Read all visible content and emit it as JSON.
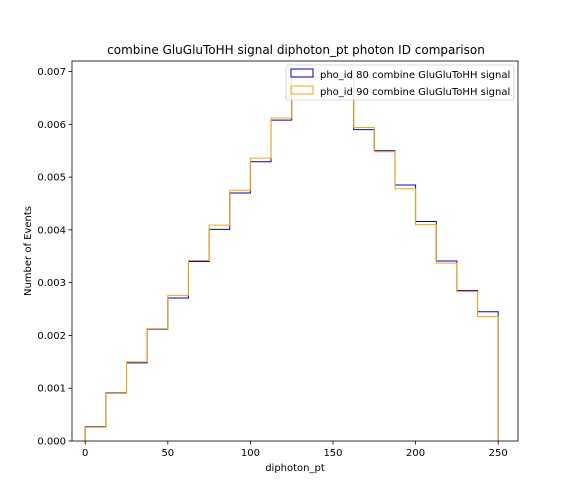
{
  "chart_data": {
    "type": "line",
    "title": "combine GluGluToHH signal diphoton_pt photon ID comparison",
    "xlabel": "diphoton_pt",
    "ylabel": "Number of Events",
    "xlim": [
      -8,
      262
    ],
    "ylim": [
      0,
      0.0072
    ],
    "x_ticks": [
      0,
      50,
      100,
      150,
      200,
      250
    ],
    "x_tick_labels": [
      "0",
      "50",
      "100",
      "150",
      "200",
      "250"
    ],
    "y_ticks": [
      0.0,
      0.001,
      0.002,
      0.003,
      0.004,
      0.005,
      0.006,
      0.007
    ],
    "y_tick_labels": [
      "0.000",
      "0.001",
      "0.002",
      "0.003",
      "0.004",
      "0.005",
      "0.006",
      "0.007"
    ],
    "grid": false,
    "legend_position": "top-right",
    "bin_edges": [
      0,
      12.5,
      25,
      37.5,
      50,
      62.5,
      75,
      87.5,
      100,
      112.5,
      125,
      137.5,
      150,
      162.5,
      175,
      187.5,
      200,
      212.5,
      225,
      237.5,
      250
    ],
    "series": [
      {
        "name": "pho_id 80 combine GluGluToHH signal",
        "color": "#0000cc",
        "values": [
          0.00027,
          0.00091,
          0.00148,
          0.00212,
          0.00271,
          0.0034,
          0.00401,
          0.0047,
          0.00529,
          0.00608,
          0.0069,
          0.0069,
          0.0069,
          0.0059,
          0.0055,
          0.00485,
          0.00416,
          0.00341,
          0.00285,
          0.00245
        ]
      },
      {
        "name": "pho_id 90 combine GluGluToHH signal",
        "color": "#ffa500",
        "values": [
          0.00026,
          0.0009,
          0.0015,
          0.00213,
          0.00276,
          0.00342,
          0.00409,
          0.00475,
          0.00536,
          0.00612,
          0.0069,
          0.0069,
          0.0069,
          0.00594,
          0.00548,
          0.00478,
          0.0041,
          0.00337,
          0.00283,
          0.00236
        ]
      }
    ]
  }
}
